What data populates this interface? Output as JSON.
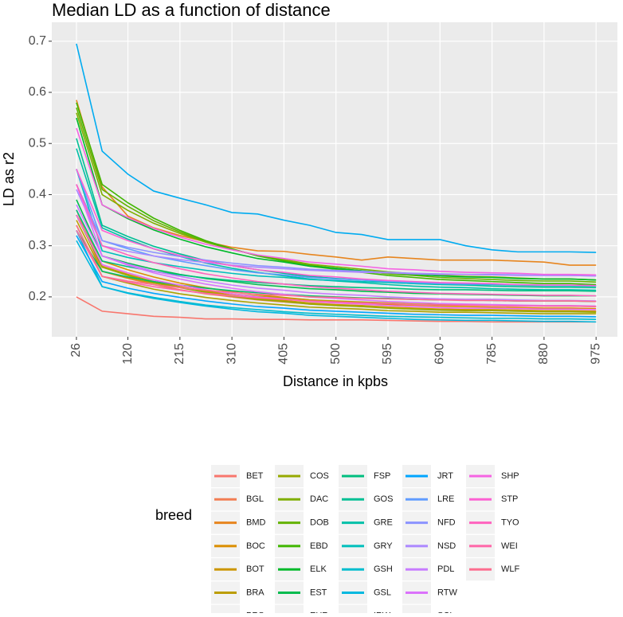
{
  "chart_data": {
    "type": "line",
    "title": "Median LD as a function of distance",
    "x_label": "Distance in kpbs",
    "y_label": "LD as r2",
    "x": [
      26,
      73,
      120,
      167,
      215,
      262,
      310,
      357,
      405,
      452,
      500,
      547,
      595,
      642,
      690,
      737,
      785,
      832,
      880,
      927,
      975
    ],
    "xlim": [
      -19,
      1014
    ],
    "xticks": [
      26,
      120,
      215,
      310,
      405,
      500,
      595,
      690,
      785,
      880,
      975
    ],
    "ylim": [
      0.122,
      0.737
    ],
    "yticks": [
      0.2,
      0.3,
      0.4,
      0.5,
      0.6,
      0.7
    ],
    "grid": true,
    "legend_title": "breed",
    "legend_position": "bottom",
    "series": [
      {
        "name": "BET",
        "color": "#F8766D",
        "values": [
          0.2,
          0.172,
          0.167,
          0.162,
          0.16,
          0.157,
          0.157,
          0.156,
          0.156,
          0.155,
          0.155,
          0.155,
          0.154,
          0.153,
          0.152,
          0.152,
          0.151,
          0.151,
          0.151,
          0.151,
          0.151
        ]
      },
      {
        "name": "BGL",
        "color": "#F27D53",
        "values": [
          0.37,
          0.25,
          0.236,
          0.224,
          0.214,
          0.206,
          0.2,
          0.194,
          0.19,
          0.186,
          0.184,
          0.181,
          0.179,
          0.177,
          0.176,
          0.175,
          0.174,
          0.173,
          0.172,
          0.172,
          0.172
        ]
      },
      {
        "name": "BMD",
        "color": "#E7851E",
        "values": [
          0.585,
          0.415,
          0.358,
          0.335,
          0.32,
          0.308,
          0.297,
          0.29,
          0.289,
          0.283,
          0.278,
          0.272,
          0.278,
          0.275,
          0.272,
          0.272,
          0.272,
          0.27,
          0.268,
          0.262,
          0.262
        ]
      },
      {
        "name": "BOC",
        "color": "#DB8E00",
        "values": [
          0.36,
          0.27,
          0.253,
          0.239,
          0.227,
          0.218,
          0.21,
          0.204,
          0.199,
          0.194,
          0.191,
          0.188,
          0.185,
          0.184,
          0.182,
          0.181,
          0.18,
          0.179,
          0.178,
          0.178,
          0.177
        ]
      },
      {
        "name": "BOT",
        "color": "#CC9600",
        "values": [
          0.36,
          0.26,
          0.244,
          0.23,
          0.22,
          0.211,
          0.203,
          0.197,
          0.193,
          0.188,
          0.185,
          0.183,
          0.18,
          0.178,
          0.176,
          0.175,
          0.175,
          0.174,
          0.173,
          0.173,
          0.172
        ]
      },
      {
        "name": "BRA",
        "color": "#BC9D00",
        "values": [
          0.35,
          0.25,
          0.237,
          0.227,
          0.219,
          0.212,
          0.206,
          0.201,
          0.198,
          0.194,
          0.192,
          0.19,
          0.188,
          0.186,
          0.185,
          0.184,
          0.184,
          0.183,
          0.182,
          0.182,
          0.181
        ]
      },
      {
        "name": "BRS",
        "color": "#AAA300",
        "values": [
          0.34,
          0.24,
          0.227,
          0.215,
          0.206,
          0.199,
          0.193,
          0.188,
          0.184,
          0.18,
          0.178,
          0.176,
          0.173,
          0.172,
          0.17,
          0.17,
          0.169,
          0.168,
          0.167,
          0.167,
          0.167
        ]
      },
      {
        "name": "COS",
        "color": "#96A900",
        "values": [
          0.36,
          0.258,
          0.242,
          0.228,
          0.218,
          0.209,
          0.201,
          0.195,
          0.191,
          0.186,
          0.183,
          0.181,
          0.178,
          0.176,
          0.174,
          0.173,
          0.173,
          0.172,
          0.171,
          0.171,
          0.17
        ]
      },
      {
        "name": "DAC",
        "color": "#7FAE00",
        "values": [
          0.56,
          0.4,
          0.369,
          0.344,
          0.324,
          0.307,
          0.293,
          0.281,
          0.273,
          0.264,
          0.259,
          0.254,
          0.249,
          0.245,
          0.242,
          0.24,
          0.239,
          0.237,
          0.235,
          0.235,
          0.233
        ]
      },
      {
        "name": "DOB",
        "color": "#64B200",
        "values": [
          0.57,
          0.41,
          0.377,
          0.349,
          0.327,
          0.308,
          0.293,
          0.281,
          0.271,
          0.262,
          0.256,
          0.251,
          0.245,
          0.242,
          0.238,
          0.236,
          0.234,
          0.232,
          0.231,
          0.231,
          0.229
        ]
      },
      {
        "name": "EBD",
        "color": "#40B600",
        "values": [
          0.58,
          0.42,
          0.384,
          0.354,
          0.33,
          0.31,
          0.294,
          0.28,
          0.27,
          0.26,
          0.254,
          0.248,
          0.242,
          0.238,
          0.234,
          0.232,
          0.23,
          0.228,
          0.226,
          0.226,
          0.224
        ]
      },
      {
        "name": "ELK",
        "color": "#00B92A",
        "values": [
          0.55,
          0.38,
          0.353,
          0.331,
          0.313,
          0.298,
          0.286,
          0.275,
          0.268,
          0.26,
          0.256,
          0.251,
          0.247,
          0.244,
          0.241,
          0.239,
          0.238,
          0.236,
          0.235,
          0.235,
          0.233
        ]
      },
      {
        "name": "EST",
        "color": "#00BB4E",
        "values": [
          0.39,
          0.28,
          0.266,
          0.254,
          0.244,
          0.236,
          0.23,
          0.224,
          0.22,
          0.216,
          0.214,
          0.211,
          0.209,
          0.207,
          0.206,
          0.205,
          0.204,
          0.203,
          0.202,
          0.202,
          0.202
        ]
      },
      {
        "name": "EUR",
        "color": "#00BD68",
        "values": [
          0.33,
          0.25,
          0.239,
          0.23,
          0.223,
          0.217,
          0.212,
          0.208,
          0.205,
          0.202,
          0.2,
          0.198,
          0.197,
          0.195,
          0.194,
          0.194,
          0.193,
          0.192,
          0.192,
          0.192,
          0.191
        ]
      },
      {
        "name": "FSP",
        "color": "#00BE7F",
        "values": [
          0.37,
          0.27,
          0.259,
          0.25,
          0.243,
          0.237,
          0.232,
          0.228,
          0.225,
          0.222,
          0.22,
          0.218,
          0.217,
          0.215,
          0.214,
          0.214,
          0.213,
          0.212,
          0.212,
          0.212,
          0.211
        ]
      },
      {
        "name": "GOS",
        "color": "#00BF94",
        "values": [
          0.51,
          0.34,
          0.318,
          0.299,
          0.284,
          0.271,
          0.261,
          0.253,
          0.246,
          0.24,
          0.236,
          0.233,
          0.229,
          0.226,
          0.224,
          0.223,
          0.221,
          0.22,
          0.219,
          0.219,
          0.218
        ]
      },
      {
        "name": "GRE",
        "color": "#00C0A8",
        "values": [
          0.49,
          0.335,
          0.313,
          0.294,
          0.279,
          0.266,
          0.256,
          0.248,
          0.241,
          0.235,
          0.231,
          0.228,
          0.224,
          0.221,
          0.219,
          0.218,
          0.216,
          0.215,
          0.214,
          0.214,
          0.213
        ]
      },
      {
        "name": "GRY",
        "color": "#00BFBB",
        "values": [
          0.45,
          0.29,
          0.277,
          0.267,
          0.259,
          0.252,
          0.246,
          0.241,
          0.238,
          0.234,
          0.232,
          0.23,
          0.228,
          0.226,
          0.225,
          0.224,
          0.224,
          0.223,
          0.222,
          0.222,
          0.221
        ]
      },
      {
        "name": "GSH",
        "color": "#00BDCE",
        "values": [
          0.33,
          0.22,
          0.208,
          0.199,
          0.191,
          0.184,
          0.179,
          0.175,
          0.171,
          0.168,
          0.166,
          0.164,
          0.162,
          0.161,
          0.16,
          0.159,
          0.158,
          0.158,
          0.157,
          0.157,
          0.156
        ]
      },
      {
        "name": "GSL",
        "color": "#00B8DF",
        "values": [
          0.31,
          0.22,
          0.207,
          0.197,
          0.189,
          0.182,
          0.176,
          0.171,
          0.168,
          0.164,
          0.162,
          0.16,
          0.158,
          0.156,
          0.155,
          0.154,
          0.154,
          0.153,
          0.152,
          0.152,
          0.151
        ]
      },
      {
        "name": "IRW",
        "color": "#00ABF0",
        "values": [
          0.695,
          0.485,
          0.44,
          0.407,
          0.393,
          0.38,
          0.365,
          0.362,
          0.35,
          0.34,
          0.326,
          0.322,
          0.312,
          0.312,
          0.312,
          0.3,
          0.292,
          0.288,
          0.288,
          0.288,
          0.287
        ]
      },
      {
        "name": "JRT",
        "color": "#00A5FF",
        "values": [
          0.32,
          0.23,
          0.217,
          0.207,
          0.199,
          0.192,
          0.186,
          0.181,
          0.178,
          0.174,
          0.172,
          0.17,
          0.168,
          0.166,
          0.165,
          0.164,
          0.164,
          0.163,
          0.162,
          0.162,
          0.161
        ]
      },
      {
        "name": "LRE",
        "color": "#619CFF",
        "values": [
          0.45,
          0.31,
          0.294,
          0.28,
          0.27,
          0.261,
          0.253,
          0.247,
          0.243,
          0.238,
          0.235,
          0.233,
          0.23,
          0.228,
          0.226,
          0.225,
          0.225,
          0.224,
          0.223,
          0.223,
          0.222
        ]
      },
      {
        "name": "NFD",
        "color": "#8B93FF",
        "values": [
          0.42,
          0.31,
          0.297,
          0.287,
          0.279,
          0.272,
          0.266,
          0.261,
          0.258,
          0.254,
          0.252,
          0.25,
          0.248,
          0.246,
          0.245,
          0.244,
          0.244,
          0.243,
          0.242,
          0.242,
          0.241
        ]
      },
      {
        "name": "NSD",
        "color": "#AC88FF",
        "values": [
          0.41,
          0.3,
          0.289,
          0.28,
          0.273,
          0.267,
          0.262,
          0.258,
          0.255,
          0.252,
          0.25,
          0.248,
          0.247,
          0.245,
          0.244,
          0.244,
          0.243,
          0.242,
          0.242,
          0.242,
          0.241
        ]
      },
      {
        "name": "PDL",
        "color": "#C77CFF",
        "values": [
          0.38,
          0.28,
          0.264,
          0.25,
          0.24,
          0.231,
          0.223,
          0.217,
          0.213,
          0.208,
          0.205,
          0.203,
          0.2,
          0.198,
          0.196,
          0.195,
          0.195,
          0.194,
          0.193,
          0.193,
          0.192
        ]
      },
      {
        "name": "RTW",
        "color": "#DB72FB",
        "values": [
          0.42,
          0.28,
          0.262,
          0.247,
          0.235,
          0.225,
          0.217,
          0.21,
          0.205,
          0.2,
          0.197,
          0.194,
          0.191,
          0.189,
          0.187,
          0.186,
          0.185,
          0.184,
          0.183,
          0.183,
          0.182
        ]
      },
      {
        "name": "SCI",
        "color": "#EA6AF1",
        "values": [
          0.36,
          0.263,
          0.247,
          0.233,
          0.223,
          0.214,
          0.206,
          0.2,
          0.196,
          0.191,
          0.188,
          0.186,
          0.183,
          0.181,
          0.179,
          0.178,
          0.178,
          0.177,
          0.176,
          0.176,
          0.175
        ]
      },
      {
        "name": "SHP",
        "color": "#F564E3",
        "values": [
          0.53,
          0.38,
          0.355,
          0.334,
          0.317,
          0.303,
          0.292,
          0.282,
          0.275,
          0.268,
          0.264,
          0.26,
          0.255,
          0.253,
          0.25,
          0.248,
          0.247,
          0.246,
          0.244,
          0.244,
          0.243
        ]
      },
      {
        "name": "STP",
        "color": "#FC61D2",
        "values": [
          0.45,
          0.33,
          0.31,
          0.294,
          0.281,
          0.27,
          0.261,
          0.253,
          0.248,
          0.242,
          0.239,
          0.235,
          0.232,
          0.23,
          0.228,
          0.227,
          0.226,
          0.224,
          0.223,
          0.223,
          0.222
        ]
      },
      {
        "name": "TYO",
        "color": "#FF62BE",
        "values": [
          0.42,
          0.3,
          0.282,
          0.267,
          0.255,
          0.245,
          0.237,
          0.23,
          0.225,
          0.22,
          0.217,
          0.214,
          0.211,
          0.209,
          0.207,
          0.206,
          0.205,
          0.204,
          0.203,
          0.203,
          0.202
        ]
      },
      {
        "name": "WEI",
        "color": "#FF66A8",
        "values": [
          0.33,
          0.24,
          0.229,
          0.22,
          0.213,
          0.207,
          0.202,
          0.198,
          0.195,
          0.192,
          0.19,
          0.188,
          0.187,
          0.185,
          0.184,
          0.184,
          0.183,
          0.182,
          0.182,
          0.182,
          0.181
        ]
      },
      {
        "name": "WLF",
        "color": "#FC6E8F",
        "values": [
          0.34,
          0.24,
          0.231,
          0.224,
          0.218,
          0.213,
          0.209,
          0.205,
          0.203,
          0.2,
          0.199,
          0.197,
          0.196,
          0.195,
          0.194,
          0.193,
          0.193,
          0.192,
          0.192,
          0.192,
          0.191
        ]
      }
    ]
  }
}
